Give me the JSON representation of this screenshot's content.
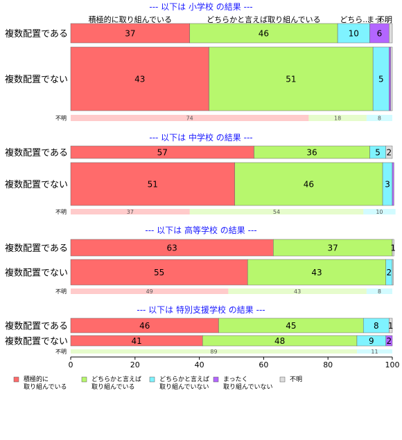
{
  "chart_data": {
    "type": "bar",
    "orientation": "horizontal",
    "stacked": true,
    "xlim": [
      0,
      100
    ],
    "x_ticks": [
      "0",
      "20",
      "40",
      "60",
      "80",
      "100"
    ],
    "legend_position": "bottom",
    "legend": [
      {
        "key": "s1",
        "name": "積極的に\n取り組んでいる",
        "color": "#ff6b6b"
      },
      {
        "key": "s2",
        "name": "どちらかと言えば\n取り組んでいる",
        "color": "#b7f76d"
      },
      {
        "key": "s3",
        "name": "どちらかと言えば\n取り組んでいない",
        "color": "#7ff3ff"
      },
      {
        "key": "s4",
        "name": "まったく\n取り組んでいない",
        "color": "#b366ff"
      },
      {
        "key": "s5",
        "name": "不明",
        "color": "#dddddd"
      }
    ],
    "column_headers": [
      "積極的に取り組んでいる",
      "どちらかと言えば取り組んでいる",
      "どちら..",
      "まっ...",
      "不明"
    ],
    "panels": [
      {
        "title": "--- 以下は 小学校 の結果 ---",
        "rows": [
          {
            "label": "複数配置である",
            "values": [
              37,
              46,
              10,
              6,
              1
            ],
            "labels": [
              "37",
              "46",
              "10",
              "6",
              ""
            ]
          },
          {
            "label": "複数配置でない",
            "values": [
              43,
              51,
              5,
              0.5,
              0.5
            ],
            "labels": [
              "43",
              "51",
              "5",
              "",
              ""
            ]
          },
          {
            "label": "不明",
            "values": [
              74,
              18,
              8,
              0,
              0
            ],
            "labels": [
              "74",
              "18",
              "8",
              "",
              ""
            ]
          }
        ]
      },
      {
        "title": "--- 以下は 中学校 の結果 ---",
        "rows": [
          {
            "label": "複数配置である",
            "values": [
              57,
              36,
              5,
              0,
              2
            ],
            "labels": [
              "57",
              "36",
              "5",
              "",
              "2"
            ]
          },
          {
            "label": "複数配置でない",
            "values": [
              51,
              46,
              3,
              0.5,
              0
            ],
            "labels": [
              "51",
              "46",
              "3",
              "",
              ""
            ]
          },
          {
            "label": "不明",
            "values": [
              37,
              54,
              10,
              0,
              0
            ],
            "labels": [
              "37",
              "54",
              "10",
              "",
              ""
            ]
          }
        ]
      },
      {
        "title": "--- 以下は 高等学校 の結果 ---",
        "rows": [
          {
            "label": "複数配置である",
            "values": [
              63,
              37,
              0,
              0,
              0.5
            ],
            "labels": [
              "63",
              "37",
              "",
              "",
              "1"
            ]
          },
          {
            "label": "複数配置でない",
            "values": [
              55,
              43,
              2,
              0,
              0.3
            ],
            "labels": [
              "55",
              "43",
              "2",
              "",
              ""
            ]
          },
          {
            "label": "不明",
            "values": [
              49,
              43,
              8,
              0,
              0
            ],
            "labels": [
              "49",
              "43",
              "8",
              "",
              ""
            ]
          }
        ]
      },
      {
        "title": "--- 以下は 特別支援学校 の結果 ---",
        "rows": [
          {
            "label": "複数配置である",
            "values": [
              46,
              45,
              8,
              0,
              1
            ],
            "labels": [
              "46",
              "45",
              "8",
              "",
              "1"
            ]
          },
          {
            "label": "複数配置でない",
            "values": [
              41,
              48,
              9,
              2,
              0
            ],
            "labels": [
              "41",
              "48",
              "9",
              "2",
              ""
            ]
          },
          {
            "label": "不明",
            "values": [
              0,
              89,
              11,
              0,
              0
            ],
            "labels": [
              "",
              "89",
              "11",
              "",
              ""
            ]
          }
        ]
      }
    ]
  }
}
